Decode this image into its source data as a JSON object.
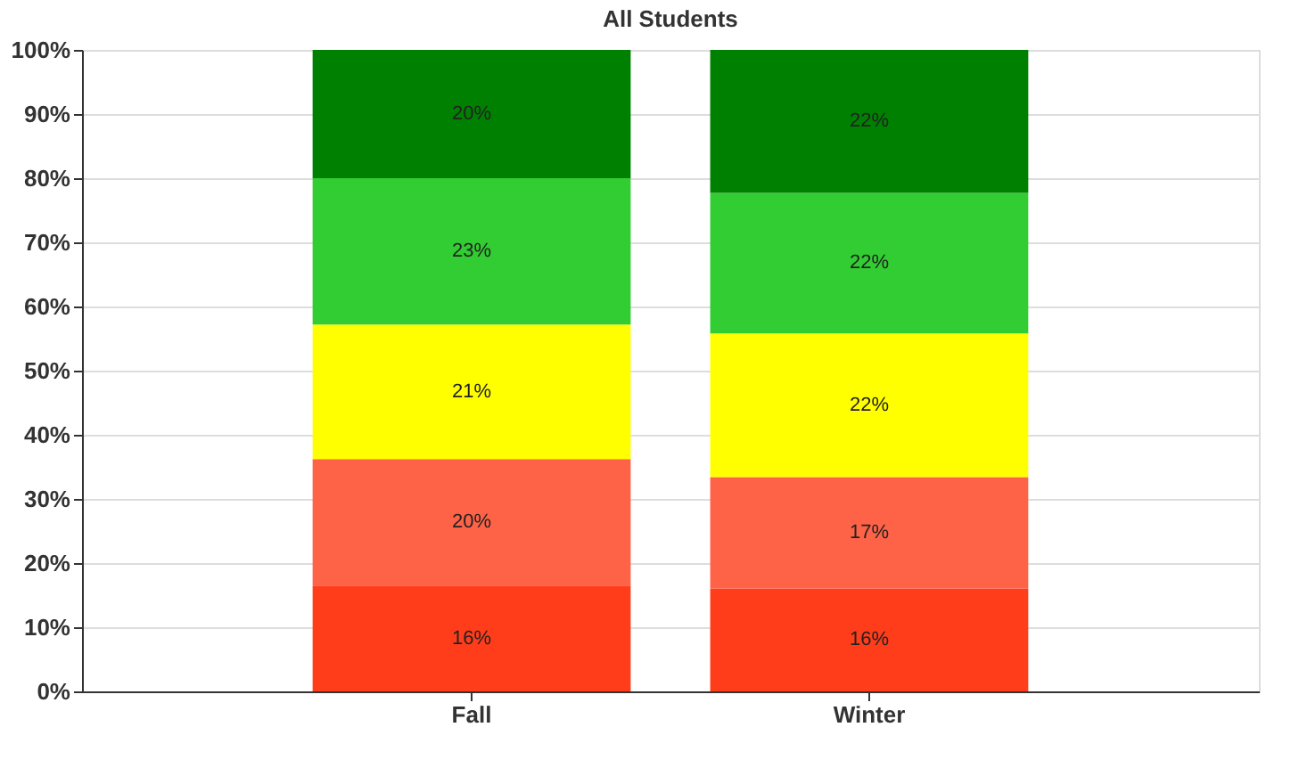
{
  "chart_data": {
    "type": "bar",
    "title": "All Students",
    "categories": [
      "Fall",
      "Winter"
    ],
    "stacked": true,
    "series": [
      {
        "color": "#ff3d1a",
        "values": [
          16.5,
          16
        ],
        "value_labels": [
          "16%",
          "16%"
        ]
      },
      {
        "color": "#ff6347",
        "values": [
          19.7,
          17.4
        ],
        "value_labels": [
          "20%",
          "17%"
        ]
      },
      {
        "color": "#ffff00",
        "values": [
          21,
          22.4
        ],
        "value_labels": [
          "21%",
          "22%"
        ]
      },
      {
        "color": "#32cd32",
        "values": [
          22.8,
          21.9
        ],
        "value_labels": [
          "23%",
          "22%"
        ]
      },
      {
        "color": "#008000",
        "values": [
          20,
          22.3
        ],
        "value_labels": [
          "20%",
          "22%"
        ]
      }
    ],
    "ylim": [
      0,
      100
    ],
    "yticks": [
      {
        "value": 0,
        "label": "0%"
      },
      {
        "value": 10,
        "label": "10%"
      },
      {
        "value": 20,
        "label": "20%"
      },
      {
        "value": 30,
        "label": "30%"
      },
      {
        "value": 40,
        "label": "40%"
      },
      {
        "value": 50,
        "label": "50%"
      },
      {
        "value": 60,
        "label": "60%"
      },
      {
        "value": 70,
        "label": "70%"
      },
      {
        "value": 80,
        "label": "80%"
      },
      {
        "value": 90,
        "label": "90%"
      },
      {
        "value": 100,
        "label": "100%"
      }
    ],
    "grid": "y"
  }
}
